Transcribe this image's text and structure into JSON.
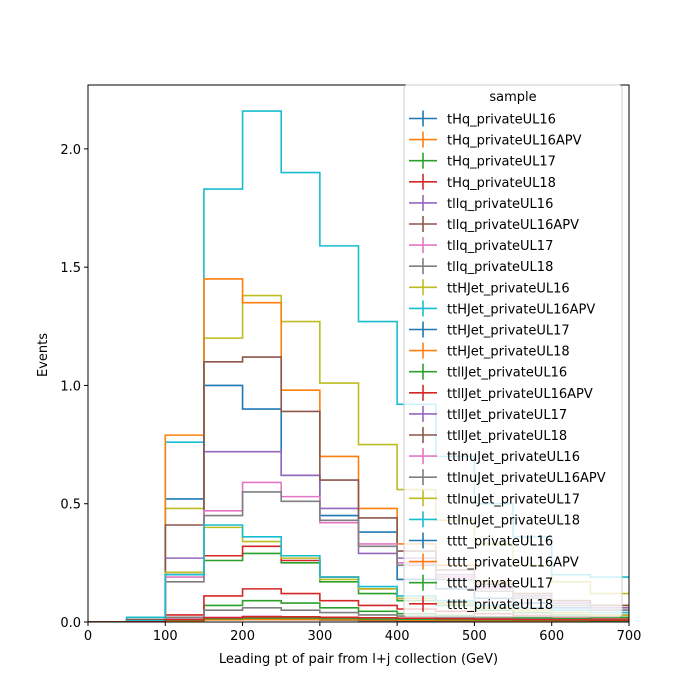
{
  "chart_data": {
    "type": "step-histogram",
    "title": "",
    "xlabel": "Leading pt of pair from l+j collection (GeV)",
    "ylabel": "Events",
    "xlim": [
      0,
      700
    ],
    "ylim": [
      0,
      2.27
    ],
    "xticks": [
      0,
      100,
      200,
      300,
      400,
      500,
      600,
      700
    ],
    "yticks": [
      0.0,
      0.5,
      1.0,
      1.5,
      2.0
    ],
    "xtick_labels": [
      "0",
      "100",
      "200",
      "300",
      "400",
      "500",
      "600",
      "700"
    ],
    "ytick_labels": [
      "0.0",
      "0.5",
      "1.0",
      "1.5",
      "2.0"
    ],
    "grid": false,
    "legend": {
      "title": "sample",
      "placement": "top-right"
    },
    "bin_edges": [
      0,
      50,
      100,
      150,
      200,
      250,
      300,
      350,
      400,
      450,
      500,
      550,
      600,
      650,
      700
    ],
    "series": [
      {
        "name": "tHq_privateUL16",
        "color": "#1f77b4",
        "values": [
          0,
          0.002,
          0.012,
          0.02,
          0.022,
          0.02,
          0.015,
          0.012,
          0.01,
          0.008,
          0.006,
          0.005,
          0.004,
          0.003
        ]
      },
      {
        "name": "tHq_privateUL16APV",
        "color": "#ff7f0e",
        "values": [
          0,
          0.002,
          0.01,
          0.018,
          0.02,
          0.018,
          0.014,
          0.011,
          0.009,
          0.007,
          0.005,
          0.004,
          0.003,
          0.003
        ]
      },
      {
        "name": "tHq_privateUL17",
        "color": "#2ca02c",
        "values": [
          0,
          0.003,
          0.02,
          0.07,
          0.09,
          0.08,
          0.06,
          0.045,
          0.035,
          0.028,
          0.022,
          0.018,
          0.014,
          0.01
        ]
      },
      {
        "name": "tHq_privateUL18",
        "color": "#d62728",
        "values": [
          0,
          0.004,
          0.03,
          0.11,
          0.14,
          0.12,
          0.09,
          0.07,
          0.055,
          0.045,
          0.035,
          0.028,
          0.022,
          0.017
        ]
      },
      {
        "name": "tllq_privateUL16",
        "color": "#9467bd",
        "values": [
          0,
          0.002,
          0.008,
          0.012,
          0.013,
          0.012,
          0.01,
          0.008,
          0.006,
          0.005,
          0.004,
          0.003,
          0.003,
          0.002
        ]
      },
      {
        "name": "tllq_privateUL16APV",
        "color": "#8c564b",
        "values": [
          0,
          0.002,
          0.007,
          0.01,
          0.011,
          0.01,
          0.008,
          0.006,
          0.005,
          0.004,
          0.003,
          0.003,
          0.002,
          0.002
        ]
      },
      {
        "name": "tllq_privateUL17",
        "color": "#e377c2",
        "values": [
          0,
          0.002,
          0.012,
          0.02,
          0.024,
          0.02,
          0.016,
          0.012,
          0.01,
          0.008,
          0.006,
          0.005,
          0.004,
          0.003
        ]
      },
      {
        "name": "tllq_privateUL18",
        "color": "#7f7f7f",
        "values": [
          0,
          0.003,
          0.02,
          0.05,
          0.06,
          0.05,
          0.04,
          0.03,
          0.025,
          0.02,
          0.015,
          0.012,
          0.01,
          0.008
        ]
      },
      {
        "name": "ttHJet_privateUL16",
        "color": "#bcbd22",
        "values": [
          0,
          0.01,
          0.48,
          1.2,
          1.38,
          1.27,
          1.01,
          0.75,
          0.56,
          0.43,
          0.33,
          0.24,
          0.17,
          0.12
        ]
      },
      {
        "name": "ttHJet_privateUL16APV",
        "color": "#17becf",
        "values": [
          0,
          0.02,
          0.76,
          1.83,
          2.16,
          1.9,
          1.59,
          1.27,
          0.92,
          0.7,
          0.5,
          0.36,
          0.2,
          0.19
        ]
      },
      {
        "name": "ttHJet_privateUL17",
        "color": "#1f77b4",
        "values": [
          0,
          0.01,
          0.52,
          1.0,
          0.9,
          0.62,
          0.45,
          0.38,
          0.18,
          0.14,
          0.1,
          0.08,
          0.06,
          0.05
        ]
      },
      {
        "name": "ttHJet_privateUL18",
        "color": "#ff7f0e",
        "values": [
          0,
          0.01,
          0.79,
          1.45,
          1.35,
          0.98,
          0.7,
          0.48,
          0.33,
          0.24,
          0.17,
          0.12,
          0.09,
          0.07
        ]
      },
      {
        "name": "ttllJet_privateUL16",
        "color": "#2ca02c",
        "values": [
          0,
          0.005,
          0.2,
          0.26,
          0.29,
          0.25,
          0.17,
          0.12,
          0.09,
          0.07,
          0.05,
          0.04,
          0.03,
          0.02
        ]
      },
      {
        "name": "ttllJet_privateUL16APV",
        "color": "#d62728",
        "values": [
          0,
          0.005,
          0.2,
          0.28,
          0.32,
          0.26,
          0.19,
          0.14,
          0.1,
          0.08,
          0.06,
          0.05,
          0.04,
          0.03
        ]
      },
      {
        "name": "ttllJet_privateUL17",
        "color": "#9467bd",
        "values": [
          0,
          0.01,
          0.27,
          0.72,
          0.72,
          0.62,
          0.48,
          0.29,
          0.27,
          0.2,
          0.15,
          0.11,
          0.08,
          0.06
        ]
      },
      {
        "name": "ttllJet_privateUL18",
        "color": "#8c564b",
        "values": [
          0,
          0.01,
          0.41,
          1.1,
          1.12,
          0.89,
          0.6,
          0.44,
          0.3,
          0.22,
          0.16,
          0.12,
          0.09,
          0.07
        ]
      },
      {
        "name": "ttlnuJet_privateUL16",
        "color": "#e377c2",
        "values": [
          0,
          0.005,
          0.19,
          0.47,
          0.59,
          0.53,
          0.42,
          0.33,
          0.25,
          0.19,
          0.14,
          0.1,
          0.07,
          0.05
        ]
      },
      {
        "name": "ttlnuJet_privateUL16APV",
        "color": "#7f7f7f",
        "values": [
          0,
          0.005,
          0.17,
          0.45,
          0.55,
          0.51,
          0.43,
          0.32,
          0.24,
          0.18,
          0.13,
          0.1,
          0.07,
          0.05
        ]
      },
      {
        "name": "ttlnuJet_privateUL17",
        "color": "#bcbd22",
        "values": [
          0,
          0.005,
          0.21,
          0.4,
          0.34,
          0.27,
          0.18,
          0.14,
          0.1,
          0.08,
          0.06,
          0.05,
          0.04,
          0.03
        ]
      },
      {
        "name": "ttlnuJet_privateUL18",
        "color": "#17becf",
        "values": [
          0,
          0.005,
          0.2,
          0.41,
          0.36,
          0.28,
          0.19,
          0.15,
          0.11,
          0.09,
          0.07,
          0.06,
          0.05,
          0.04
        ]
      },
      {
        "name": "tttt_privateUL16",
        "color": "#1f77b4",
        "values": [
          0,
          0.001,
          0.006,
          0.01,
          0.012,
          0.012,
          0.011,
          0.01,
          0.009,
          0.008,
          0.007,
          0.006,
          0.005,
          0.004
        ]
      },
      {
        "name": "tttt_privateUL16APV",
        "color": "#ff7f0e",
        "values": [
          0,
          0.001,
          0.005,
          0.009,
          0.011,
          0.011,
          0.01,
          0.009,
          0.008,
          0.007,
          0.006,
          0.005,
          0.004,
          0.004
        ]
      },
      {
        "name": "tttt_privateUL17",
        "color": "#2ca02c",
        "values": [
          0,
          0.001,
          0.008,
          0.014,
          0.017,
          0.017,
          0.015,
          0.013,
          0.012,
          0.01,
          0.009,
          0.008,
          0.007,
          0.006
        ]
      },
      {
        "name": "tttt_privateUL18",
        "color": "#d62728",
        "values": [
          0,
          0.001,
          0.01,
          0.018,
          0.022,
          0.022,
          0.02,
          0.018,
          0.016,
          0.014,
          0.012,
          0.01,
          0.009,
          0.008
        ]
      }
    ]
  }
}
